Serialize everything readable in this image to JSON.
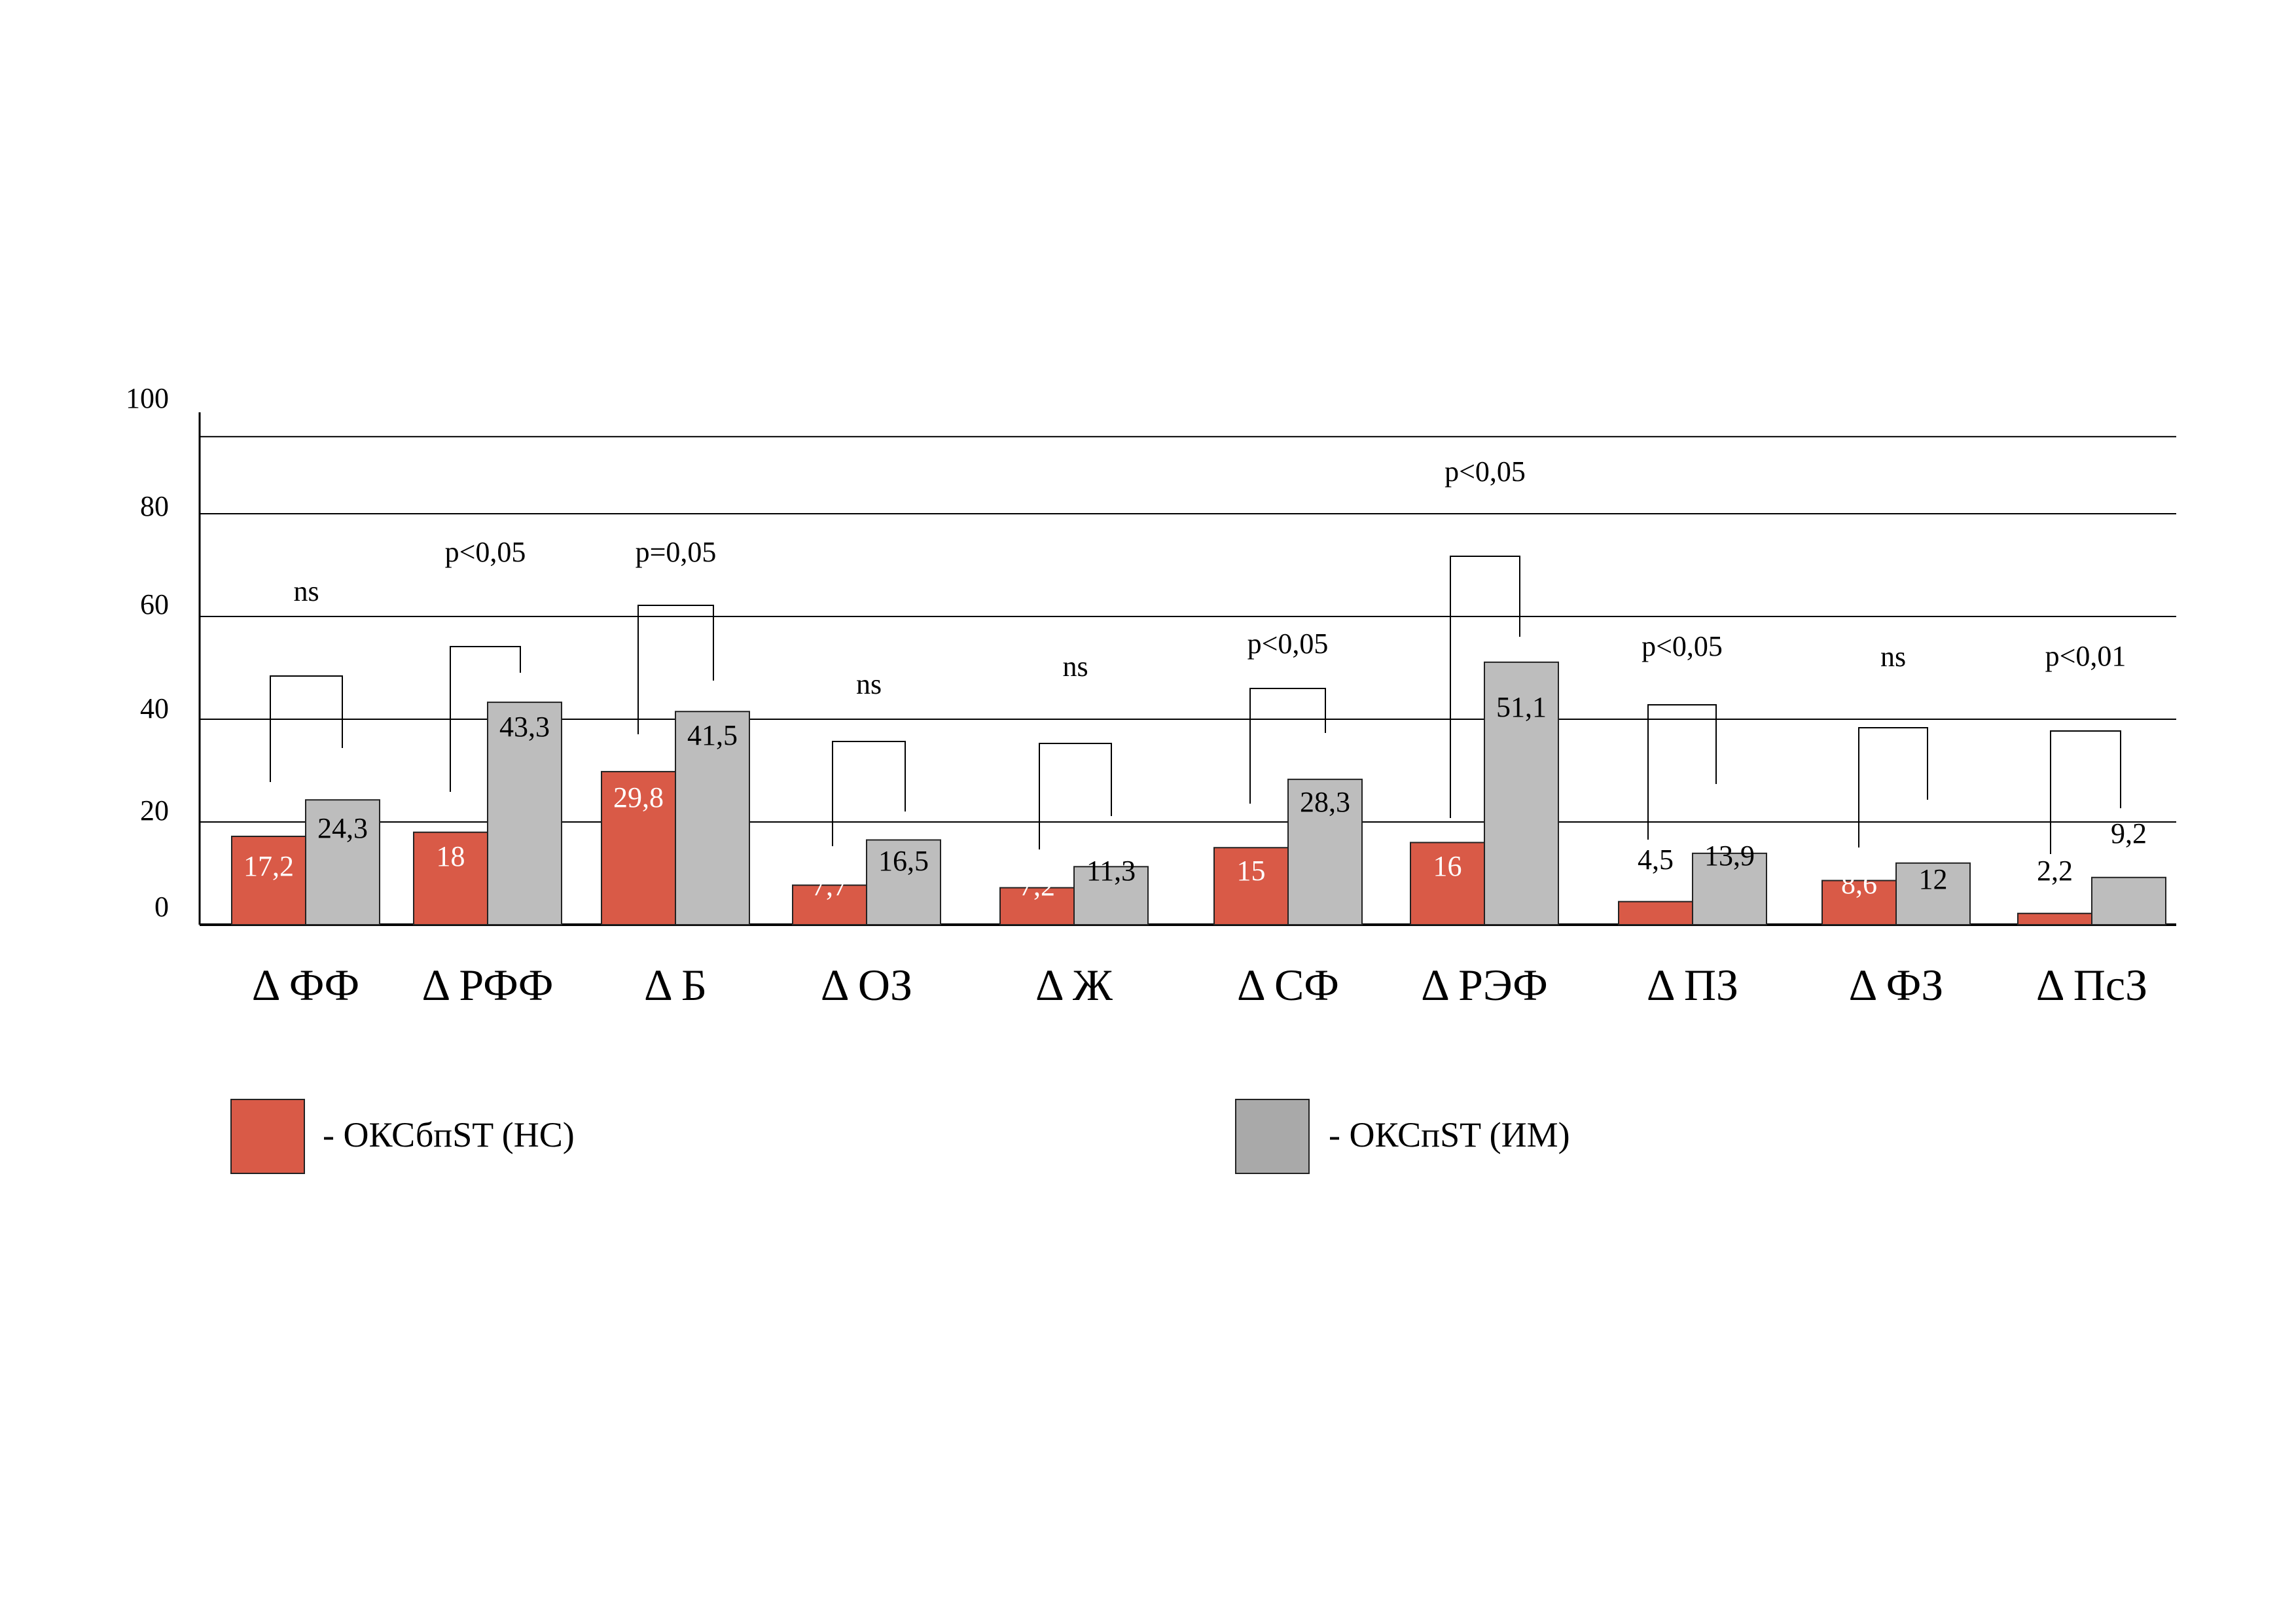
{
  "chart_data": {
    "type": "bar",
    "categories": [
      "Δ ФФ",
      "Δ РФФ",
      "Δ Б",
      "Δ ОЗ",
      "Δ Ж",
      "Δ СФ",
      "Δ РЭФ",
      "Δ ПЗ",
      "Δ ФЗ",
      "Δ ПсЗ"
    ],
    "series": [
      {
        "name": "- ОКСбпST (НС)",
        "color": "#d95a47",
        "values": [
          17.2,
          18,
          29.8,
          7.7,
          7.2,
          15,
          16,
          4.5,
          8.6,
          2.2
        ],
        "labels": [
          "17,2",
          "18",
          "29,8",
          "7,7",
          "7,2",
          "15",
          "16",
          "4,5",
          "8,6",
          "2,2"
        ]
      },
      {
        "name": "- ОКСпST (ИМ)",
        "color": "#bdbdbd",
        "values": [
          24.3,
          43.3,
          41.5,
          16.5,
          11.3,
          28.3,
          51.1,
          13.9,
          12,
          9.2
        ],
        "labels": [
          "24,3",
          "43,3",
          "41,5",
          "16,5",
          "11,3",
          "28,3",
          "51,1",
          "13,9",
          "12",
          "9,2"
        ]
      }
    ],
    "significance": [
      "ns",
      "p<0,05",
      "p=0,05",
      "ns",
      "ns",
      "p<0,05",
      "p<0,05",
      "p<0,05",
      "ns",
      "p<0,01"
    ],
    "yticks": [
      "0",
      "20",
      "40",
      "60",
      "80",
      "100"
    ],
    "ylim": [
      0,
      100
    ],
    "gridlines": [
      20,
      40,
      60,
      80,
      95
    ],
    "legend_position": "bottom"
  }
}
